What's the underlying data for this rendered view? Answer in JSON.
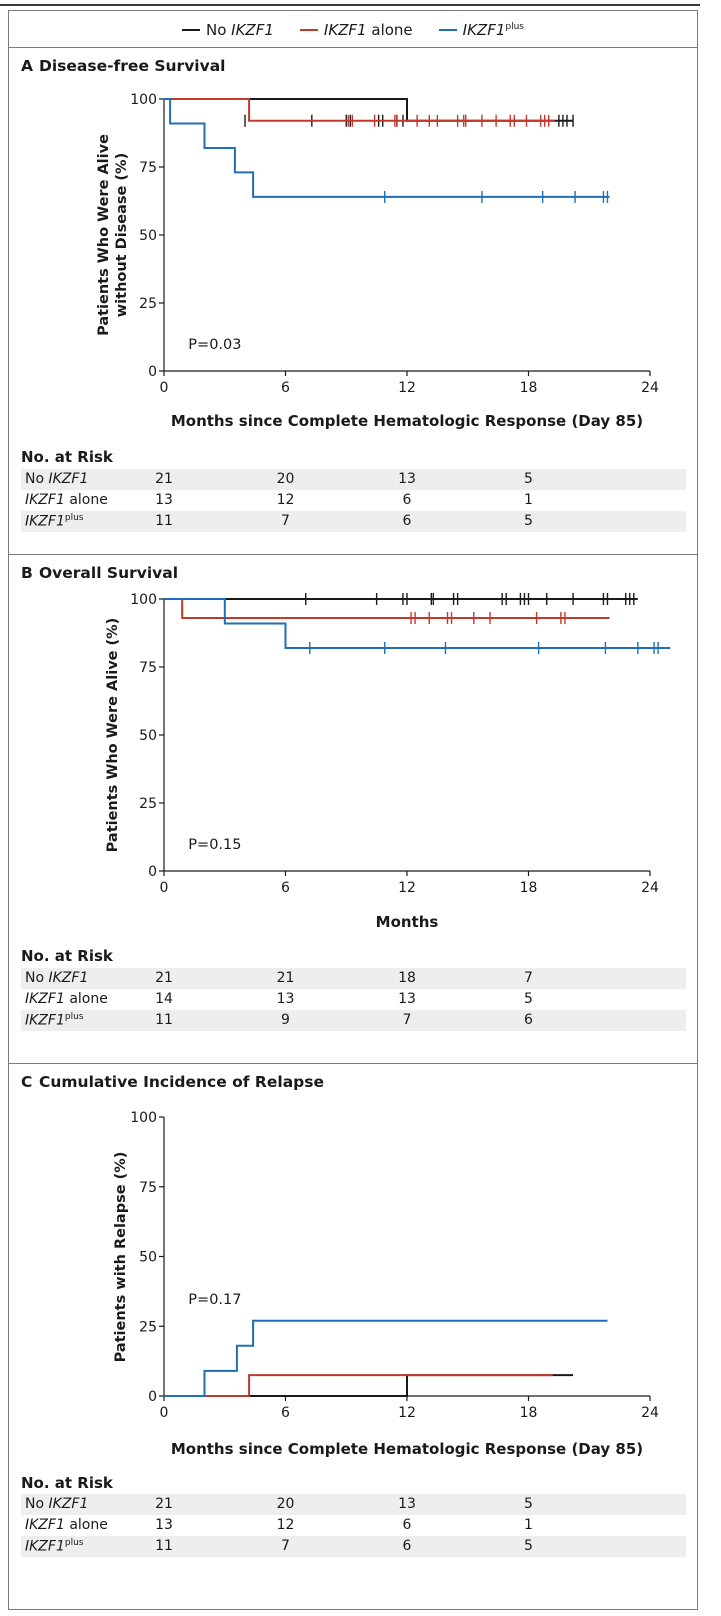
{
  "legend": [
    {
      "label": "No ",
      "gene": "IKZF1",
      "suffix": "",
      "sup": "",
      "color": "#1a1a1a"
    },
    {
      "label": "",
      "gene": "IKZF1",
      "suffix": " alone",
      "sup": "",
      "color": "#c0392b"
    },
    {
      "label": "",
      "gene": "IKZF1",
      "suffix": "",
      "sup": "plus",
      "color": "#1f6fb5"
    }
  ],
  "risk_labels": [
    {
      "pre": "No ",
      "gene": "IKZF1",
      "suffix": "",
      "sup": ""
    },
    {
      "pre": "",
      "gene": "IKZF1",
      "suffix": " alone",
      "sup": ""
    },
    {
      "pre": "",
      "gene": "IKZF1",
      "suffix": "",
      "sup": "plus"
    }
  ],
  "chart_data": [
    {
      "panel": "A",
      "title": "Disease-free Survival",
      "type": "line",
      "ylabel": [
        "Patients Who Were Alive",
        "without Disease (%)"
      ],
      "xlabel": "Months since Complete Hematologic Response (Day 85)",
      "xlim": [
        0,
        24
      ],
      "ylim": [
        0,
        100
      ],
      "xticks": [
        0,
        6,
        12,
        18,
        24
      ],
      "yticks": [
        0,
        25,
        50,
        75,
        100
      ],
      "pvalue": "P=0.03",
      "pvalue_pos": [
        1.2,
        8
      ],
      "series": [
        {
          "color": "#1a1a1a",
          "x": [
            0,
            12,
            12,
            20.2
          ],
          "y": [
            100,
            100,
            92,
            92
          ],
          "censor": [
            4,
            7.3,
            9,
            9.2,
            10.6,
            10.8,
            11.5,
            11.8,
            19.5,
            19.7,
            19.9,
            20.2
          ]
        },
        {
          "color": "#c0392b",
          "x": [
            0,
            4.2,
            4.2,
            19.3
          ],
          "y": [
            100,
            100,
            92,
            92
          ],
          "censor": [
            9.1,
            9.3,
            10.4,
            11.4,
            11.5,
            12.5,
            13.1,
            13.5,
            14.5,
            14.8,
            14.9,
            15.7,
            16.4,
            17.1,
            17.3,
            17.9,
            18.6,
            18.8,
            19.0
          ]
        },
        {
          "color": "#1f6fb5",
          "x": [
            0,
            0.3,
            0.3,
            2,
            2,
            3.5,
            3.5,
            4.4,
            4.4,
            22
          ],
          "y": [
            100,
            100,
            91,
            91,
            82,
            82,
            73,
            73,
            64,
            64
          ],
          "censor": [
            10.9,
            15.7,
            18.7,
            20.3,
            21.7,
            21.9
          ]
        }
      ],
      "risk_title": "No. at Risk",
      "risk_x": [
        0,
        6,
        12,
        18
      ],
      "risk": [
        [
          21,
          20,
          13,
          5
        ],
        [
          13,
          12,
          6,
          1
        ],
        [
          11,
          7,
          6,
          5
        ]
      ]
    },
    {
      "panel": "B",
      "title": "Overall Survival",
      "type": "line",
      "ylabel": [
        "Patients Who Were Alive (%)"
      ],
      "xlabel": "Months",
      "xlim": [
        0,
        24
      ],
      "ylim": [
        0,
        100
      ],
      "xticks": [
        0,
        6,
        12,
        18,
        24
      ],
      "yticks": [
        0,
        25,
        50,
        75,
        100
      ],
      "pvalue": "P=0.15",
      "pvalue_pos": [
        1.2,
        8
      ],
      "series": [
        {
          "color": "#1a1a1a",
          "x": [
            0,
            23.4
          ],
          "y": [
            100,
            100
          ],
          "censor": [
            7,
            10.5,
            11.8,
            12,
            13.2,
            13.3,
            14.3,
            14.5,
            16.7,
            16.9,
            17.6,
            17.8,
            18,
            18.9,
            20.2,
            21.7,
            21.9,
            22.8,
            23,
            23.2
          ]
        },
        {
          "color": "#c0392b",
          "x": [
            0,
            0.9,
            0.9,
            22
          ],
          "y": [
            100,
            100,
            93,
            93
          ],
          "censor": [
            12.2,
            12.4,
            13.1,
            14,
            14.2,
            15.3,
            16.1,
            18.4,
            19.6,
            19.8
          ]
        },
        {
          "color": "#1f6fb5",
          "x": [
            0,
            3,
            3,
            6,
            6,
            25
          ],
          "y": [
            100,
            100,
            91,
            91,
            82,
            82
          ],
          "censor": [
            7.2,
            10.9,
            13.9,
            18.5,
            21.8,
            23.4,
            24.2,
            24.4
          ]
        }
      ],
      "risk_title": "No. at Risk",
      "risk_x": [
        0,
        6,
        12,
        18
      ],
      "risk": [
        [
          21,
          21,
          18,
          7
        ],
        [
          14,
          13,
          13,
          5
        ],
        [
          11,
          9,
          7,
          6
        ]
      ]
    },
    {
      "panel": "C",
      "title": "Cumulative Incidence of Relapse",
      "type": "line",
      "ylabel": [
        "Patients with Relapse (%)"
      ],
      "xlabel": "Months since Complete Hematologic Response (Day 85)",
      "xlim": [
        0,
        24
      ],
      "ylim": [
        0,
        100
      ],
      "xticks": [
        0,
        6,
        12,
        18,
        24
      ],
      "yticks": [
        0,
        25,
        50,
        75,
        100
      ],
      "pvalue": "P=0.17",
      "pvalue_pos": [
        1.2,
        33
      ],
      "series": [
        {
          "color": "#1a1a1a",
          "x": [
            0,
            12,
            12,
            12,
            12,
            20.2
          ],
          "y": [
            0,
            0,
            7.5,
            0,
            7.5,
            7.5
          ],
          "censor": []
        },
        {
          "color": "#c0392b",
          "x": [
            0,
            4.2,
            4.2,
            19.2
          ],
          "y": [
            0,
            0,
            7.5,
            7.5
          ],
          "censor": []
        },
        {
          "color": "#1f6fb5",
          "x": [
            0,
            2,
            2,
            3.6,
            3.6,
            4.4,
            4.4,
            21.9
          ],
          "y": [
            0,
            0,
            9,
            9,
            18,
            18,
            27,
            27
          ],
          "censor": []
        }
      ],
      "risk_title": "No. at Risk",
      "risk_x": [
        0,
        6,
        12,
        18
      ],
      "risk": [
        [
          21,
          20,
          13,
          5
        ],
        [
          13,
          12,
          6,
          1
        ],
        [
          11,
          7,
          6,
          5
        ]
      ]
    }
  ]
}
